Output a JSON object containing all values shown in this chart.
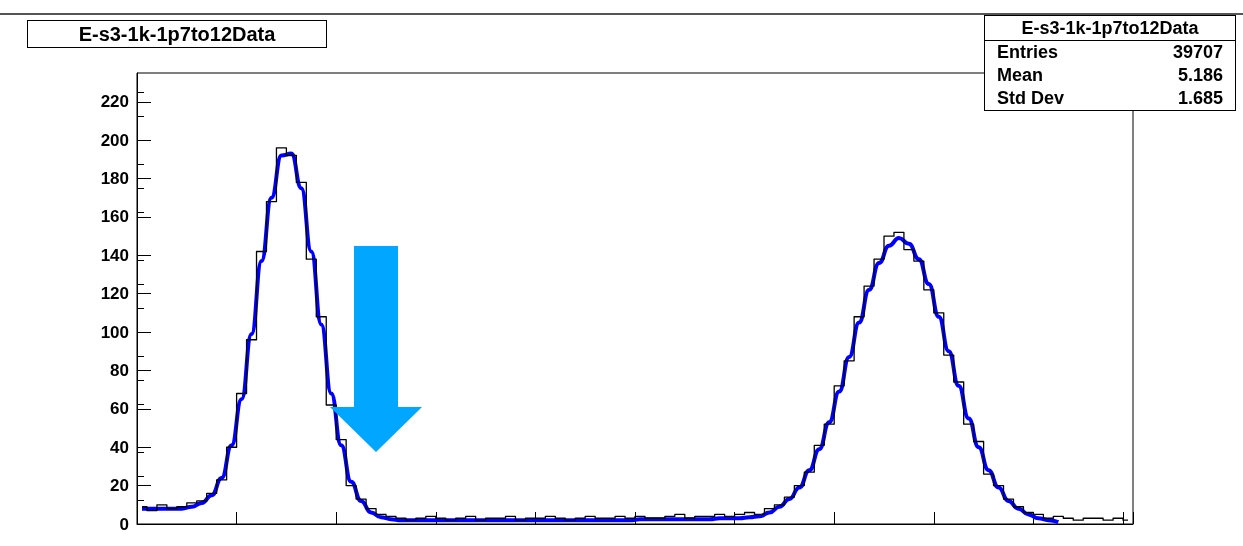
{
  "chart_data": {
    "type": "line",
    "title": "E-s3-1k-1p7to12Data",
    "annotations": [
      "E-s3-1k-1p7to12Data",
      "Entries 39707",
      "Mean 5.186",
      "Std Dev 1.685"
    ],
    "categories": [
      null,
      null,
      null,
      null,
      null,
      null,
      null,
      null,
      null,
      null,
      null,
      null,
      null,
      null,
      null,
      null,
      null,
      null,
      null,
      null,
      null,
      null,
      null,
      null,
      null,
      null,
      null,
      null,
      null,
      null,
      null,
      null,
      null,
      null,
      null,
      null,
      null,
      null,
      null,
      null,
      null,
      null,
      null,
      null,
      null,
      null,
      null,
      null,
      null,
      null,
      null,
      null,
      null,
      null,
      null,
      null,
      null,
      null,
      null,
      null,
      null,
      null,
      null,
      null,
      null,
      null,
      null,
      null,
      null,
      null,
      null,
      null,
      null,
      null,
      null,
      null,
      null,
      null,
      null,
      null,
      null,
      null,
      null,
      null,
      null,
      null,
      null,
      null,
      null,
      null,
      null,
      null,
      null,
      null,
      null,
      null,
      null,
      null,
      null,
      null
    ],
    "series": [
      {
        "type": "step",
        "color": "#000000",
        "values": [
          9,
          7,
          10,
          8,
          9,
          11,
          12,
          16,
          23,
          40,
          68,
          96,
          142,
          168,
          196,
          192,
          178,
          138,
          108,
          62,
          44,
          20,
          13,
          8,
          5,
          4,
          3,
          2,
          3,
          4,
          3,
          2,
          3,
          4,
          2,
          3,
          3,
          4,
          2,
          3,
          3,
          4,
          3,
          2,
          3,
          4,
          3,
          3,
          4,
          3,
          4,
          3,
          3,
          4,
          5,
          3,
          4,
          4,
          5,
          4,
          5,
          6,
          5,
          8,
          10,
          14,
          20,
          27,
          41,
          52,
          72,
          85,
          108,
          124,
          138,
          150,
          152,
          143,
          137,
          122,
          110,
          88,
          74,
          52,
          43,
          26,
          20,
          13,
          9,
          6,
          5,
          3,
          4,
          3,
          2,
          3,
          3,
          2,
          3,
          2
        ]
      },
      {
        "color": "#0000ff",
        "values": [
          8,
          8,
          8,
          8,
          8,
          9,
          11,
          15,
          24,
          41,
          65,
          99,
          137,
          170,
          192,
          193,
          175,
          142,
          104,
          68,
          41,
          22,
          12,
          6,
          3.5,
          2.5,
          2,
          2,
          2,
          2,
          2,
          2,
          2,
          2,
          2,
          2,
          2,
          2,
          2,
          2,
          2,
          2,
          2,
          2,
          2,
          2,
          2,
          2,
          2,
          2,
          2.5,
          2.5,
          2.5,
          2.5,
          2.5,
          2.5,
          2.5,
          2.5,
          3,
          3,
          3,
          3.5,
          4,
          6,
          9,
          13,
          19,
          28,
          39,
          53,
          69,
          87,
          105,
          122,
          136,
          145,
          149,
          146,
          138,
          125,
          108,
          90,
          72,
          55,
          40,
          28,
          19,
          12,
          8,
          5,
          3,
          2,
          1,
          null,
          null,
          null,
          null,
          null,
          null,
          null
        ]
      }
    ],
    "ylim": [
      0,
      235
    ],
    "yticks": [
      0,
      20,
      40,
      60,
      80,
      100,
      120,
      140,
      160,
      180,
      200,
      220
    ],
    "tick_labels": "y",
    "grid": false,
    "marker": "none",
    "line_style": "solid"
  }
}
